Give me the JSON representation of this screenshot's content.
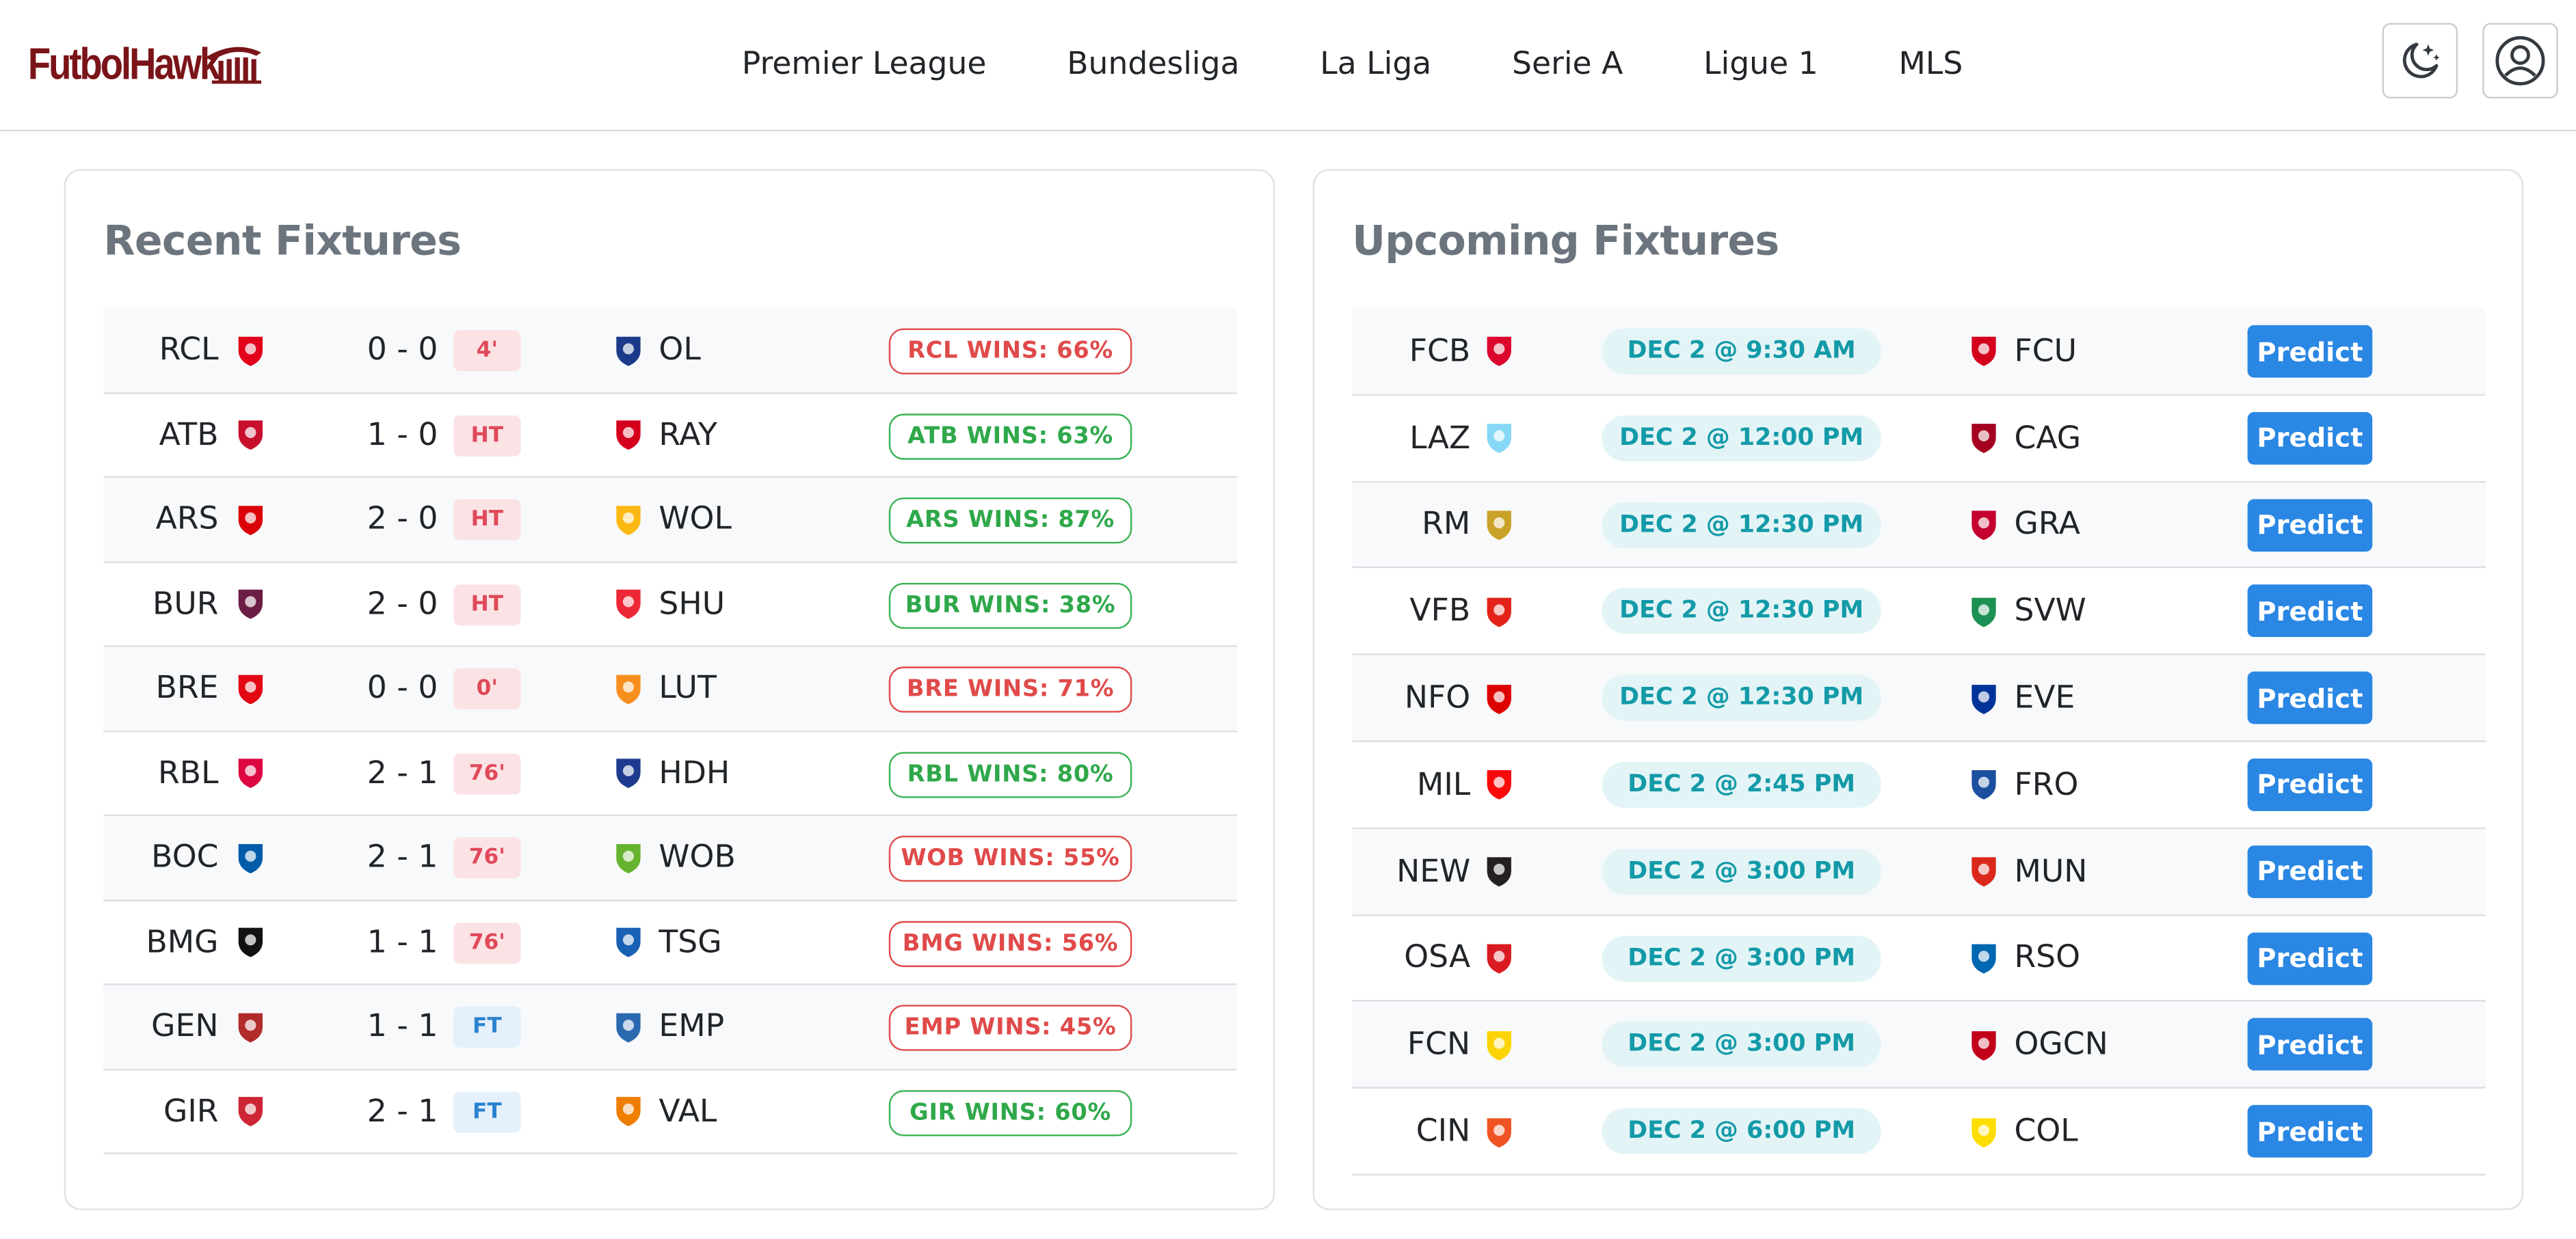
{
  "brand": {
    "name": "FutbolHawk",
    "color": "#7a1418"
  },
  "nav": {
    "links": [
      "Premier League",
      "Bundesliga",
      "La Liga",
      "Serie A",
      "Ligue 1",
      "MLS"
    ]
  },
  "header_icons": [
    "moon-stars-icon",
    "user-circle-icon"
  ],
  "recent": {
    "title": "Recent Fixtures",
    "rows": [
      {
        "home": "RCL",
        "home_color": "#e2001a",
        "score": "0 - 0",
        "status": "4'",
        "status_type": "live",
        "away": "OL",
        "away_color": "#1b3b8a",
        "prediction": "RCL WINS: 66%",
        "outcome": "lose"
      },
      {
        "home": "ATB",
        "home_color": "#c8102e",
        "score": "1 - 0",
        "status": "HT",
        "status_type": "live",
        "away": "RAY",
        "away_color": "#d5001c",
        "prediction": "ATB WINS: 63%",
        "outcome": "win"
      },
      {
        "home": "ARS",
        "home_color": "#db0007",
        "score": "2 - 0",
        "status": "HT",
        "status_type": "live",
        "away": "WOL",
        "away_color": "#fdb913",
        "prediction": "ARS WINS: 87%",
        "outcome": "win"
      },
      {
        "home": "BUR",
        "home_color": "#6c1d45",
        "score": "2 - 0",
        "status": "HT",
        "status_type": "live",
        "away": "SHU",
        "away_color": "#ee2737",
        "prediction": "BUR WINS: 38%",
        "outcome": "win"
      },
      {
        "home": "BRE",
        "home_color": "#e30613",
        "score": "0 - 0",
        "status": "0'",
        "status_type": "live",
        "away": "LUT",
        "away_color": "#f78f1e",
        "prediction": "BRE WINS: 71%",
        "outcome": "lose"
      },
      {
        "home": "RBL",
        "home_color": "#dd0741",
        "score": "2 - 1",
        "status": "76'",
        "status_type": "live",
        "away": "HDH",
        "away_color": "#1d3c8f",
        "prediction": "RBL WINS: 80%",
        "outcome": "win"
      },
      {
        "home": "BOC",
        "home_color": "#005ca9",
        "score": "2 - 1",
        "status": "76'",
        "status_type": "live",
        "away": "WOB",
        "away_color": "#65b32e",
        "prediction": "WOB WINS: 55%",
        "outcome": "lose"
      },
      {
        "home": "BMG",
        "home_color": "#111111",
        "score": "1 - 1",
        "status": "76'",
        "status_type": "live",
        "away": "TSG",
        "away_color": "#1961b5",
        "prediction": "BMG WINS: 56%",
        "outcome": "lose"
      },
      {
        "home": "GEN",
        "home_color": "#b22b2b",
        "score": "1 - 1",
        "status": "FT",
        "status_type": "ft",
        "away": "EMP",
        "away_color": "#2a69b0",
        "prediction": "EMP WINS: 45%",
        "outcome": "lose"
      },
      {
        "home": "GIR",
        "home_color": "#cd2534",
        "score": "2 - 1",
        "status": "FT",
        "status_type": "ft",
        "away": "VAL",
        "away_color": "#ee7d00",
        "prediction": "GIR WINS: 60%",
        "outcome": "win"
      }
    ]
  },
  "upcoming": {
    "title": "Upcoming Fixtures",
    "button_label": "Predict",
    "rows": [
      {
        "home": "FCB",
        "home_color": "#dc052d",
        "date": "DEC 2 @ 9:30 AM",
        "away": "FCU",
        "away_color": "#d4011d"
      },
      {
        "home": "LAZ",
        "home_color": "#87d8f7",
        "date": "DEC 2 @ 12:00 PM",
        "away": "CAG",
        "away_color": "#a50021"
      },
      {
        "home": "RM",
        "home_color": "#c9a227",
        "date": "DEC 2 @ 12:30 PM",
        "away": "GRA",
        "away_color": "#c3002f"
      },
      {
        "home": "VFB",
        "home_color": "#e32219",
        "date": "DEC 2 @ 12:30 PM",
        "away": "SVW",
        "away_color": "#1d9053"
      },
      {
        "home": "NFO",
        "home_color": "#dd0000",
        "date": "DEC 2 @ 12:30 PM",
        "away": "EVE",
        "away_color": "#003399"
      },
      {
        "home": "MIL",
        "home_color": "#fb090b",
        "date": "DEC 2 @ 2:45 PM",
        "away": "FRO",
        "away_color": "#1b4fa0"
      },
      {
        "home": "NEW",
        "home_color": "#241f20",
        "date": "DEC 2 @ 3:00 PM",
        "away": "MUN",
        "away_color": "#da291c"
      },
      {
        "home": "OSA",
        "home_color": "#d91a21",
        "date": "DEC 2 @ 3:00 PM",
        "away": "RSO",
        "away_color": "#0067b1"
      },
      {
        "home": "FCN",
        "home_color": "#fcd405",
        "date": "DEC 2 @ 3:00 PM",
        "away": "OGCN",
        "away_color": "#c2001a"
      },
      {
        "home": "CIN",
        "home_color": "#f05323",
        "date": "DEC 2 @ 6:00 PM",
        "away": "COL",
        "away_color": "#fedd00"
      }
    ]
  },
  "colors": {
    "win": "#2fa84a",
    "lose": "#e04a4a",
    "live_badge_bg": "#fbe3e5",
    "ft_badge_bg": "#e4f0fb",
    "date_pill_bg": "#e3f4f6",
    "predict_button": "#2a87e3"
  }
}
